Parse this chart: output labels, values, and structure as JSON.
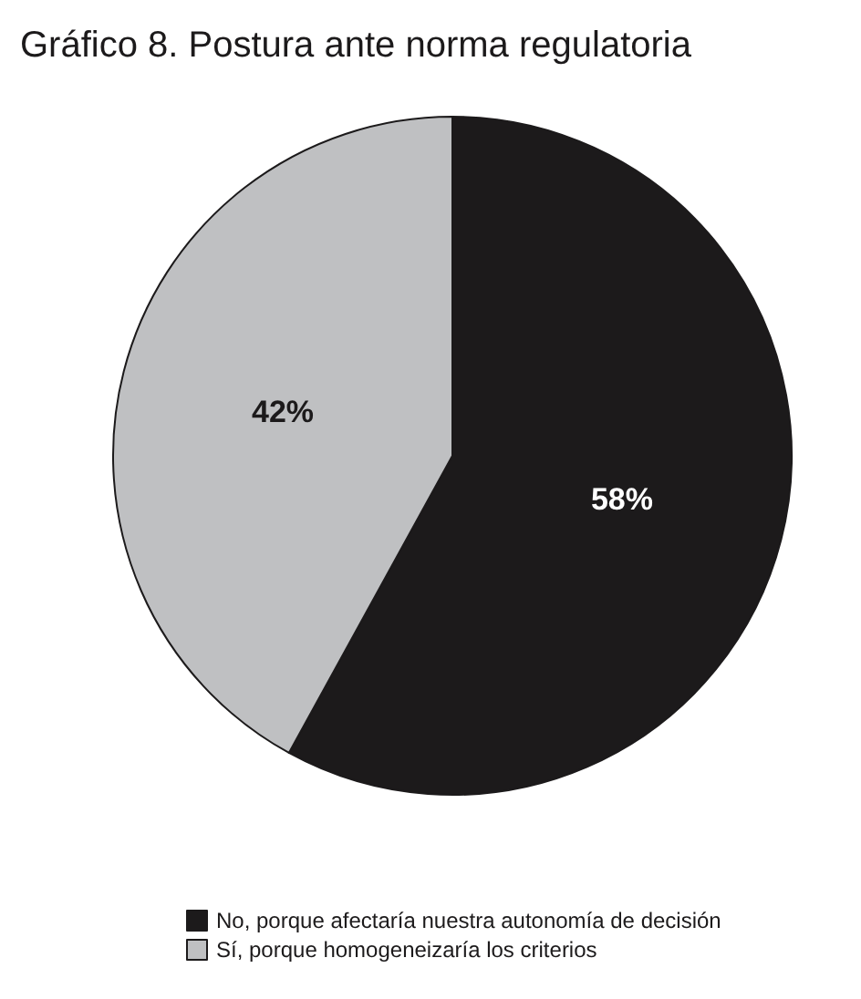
{
  "chart_data": {
    "type": "pie",
    "title": "Gráfico 8. Postura ante norma regulatoria",
    "categories": [
      "No, porque afectaría nuestra autonomía de decisión",
      "Sí, porque homogeneizaría los criterios"
    ],
    "values": [
      58,
      42
    ],
    "colors": [
      "#1c1a1b",
      "#bfc0c2"
    ],
    "value_labels": [
      "58%",
      "42%"
    ],
    "legend": "bottom"
  }
}
